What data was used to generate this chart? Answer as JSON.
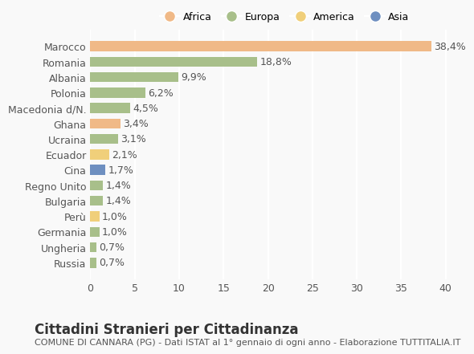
{
  "countries": [
    "Marocco",
    "Romania",
    "Albania",
    "Polonia",
    "Macedonia d/N.",
    "Ghana",
    "Ucraina",
    "Ecuador",
    "Cina",
    "Regno Unito",
    "Bulgaria",
    "Perù",
    "Germania",
    "Ungheria",
    "Russia"
  ],
  "values": [
    38.4,
    18.8,
    9.9,
    6.2,
    4.5,
    3.4,
    3.1,
    2.1,
    1.7,
    1.4,
    1.4,
    1.0,
    1.0,
    0.7,
    0.7
  ],
  "labels": [
    "38,4%",
    "18,8%",
    "9,9%",
    "6,2%",
    "4,5%",
    "3,4%",
    "3,1%",
    "2,1%",
    "1,7%",
    "1,4%",
    "1,4%",
    "1,0%",
    "1,0%",
    "0,7%",
    "0,7%"
  ],
  "colors": [
    "#f0b987",
    "#a8bf8a",
    "#a8bf8a",
    "#a8bf8a",
    "#a8bf8a",
    "#f0b987",
    "#a8bf8a",
    "#f0cf7a",
    "#6e8fc0",
    "#a8bf8a",
    "#a8bf8a",
    "#f0cf7a",
    "#a8bf8a",
    "#a8bf8a",
    "#a8bf8a"
  ],
  "continent_colors": {
    "Africa": "#f0b987",
    "Europa": "#a8bf8a",
    "America": "#f0cf7a",
    "Asia": "#6e8fc0"
  },
  "legend_labels": [
    "Africa",
    "Europa",
    "America",
    "Asia"
  ],
  "title": "Cittadini Stranieri per Cittadinanza",
  "subtitle": "COMUNE DI CANNARA (PG) - Dati ISTAT al 1° gennaio di ogni anno - Elaborazione TUTTITALIA.IT",
  "xlim": [
    0,
    42
  ],
  "xticks": [
    0,
    5,
    10,
    15,
    20,
    25,
    30,
    35,
    40
  ],
  "background_color": "#f9f9f9",
  "grid_color": "#ffffff",
  "bar_height": 0.65,
  "label_fontsize": 9,
  "tick_fontsize": 9,
  "title_fontsize": 12,
  "subtitle_fontsize": 8
}
